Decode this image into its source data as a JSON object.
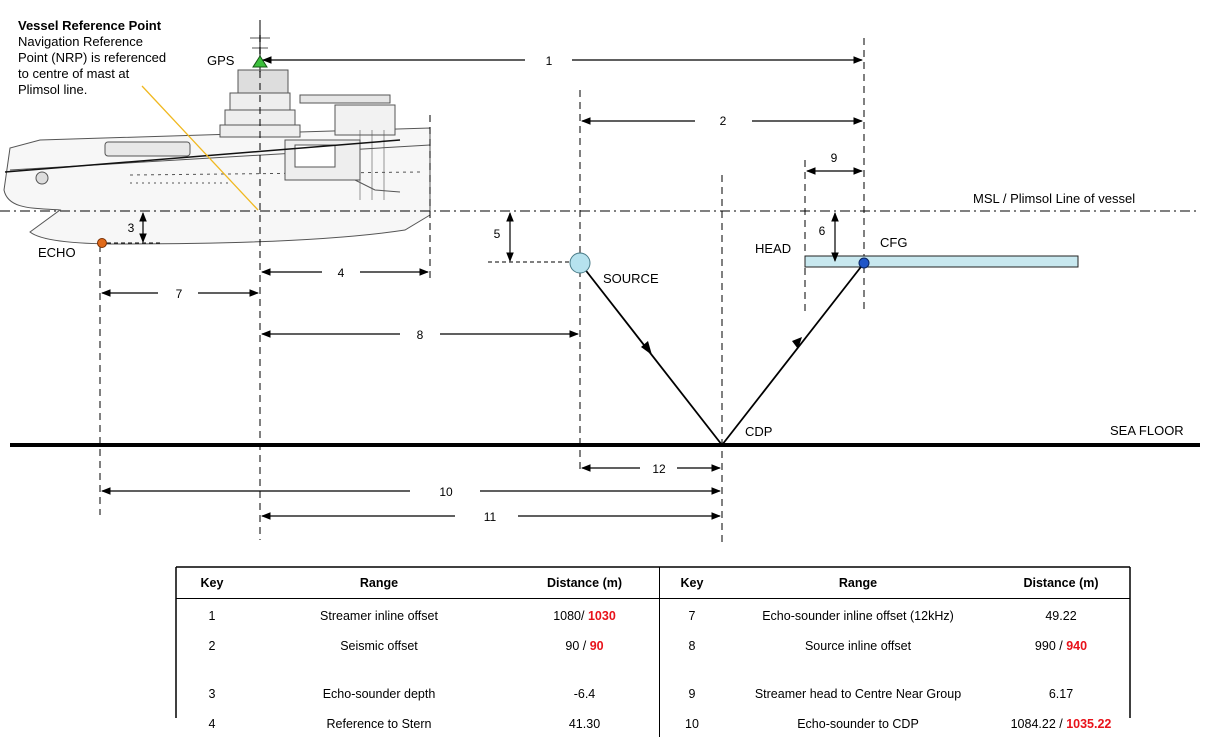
{
  "note": {
    "title": "Vessel Reference Point",
    "body": "Navigation Reference\nPoint (NRP) is referenced\nto centre of mast at\nPlimsol line."
  },
  "labels": {
    "gps": "GPS",
    "echo": "ECHO",
    "source": "SOURCE",
    "head": "HEAD",
    "cfg": "CFG",
    "cdp": "CDP",
    "msl": "MSL / Plimsol Line of vessel",
    "sea_floor": "SEA FLOOR"
  },
  "dimensions": [
    "1",
    "2",
    "3",
    "4",
    "5",
    "6",
    "7",
    "8",
    "9",
    "10",
    "11",
    "12"
  ],
  "table": {
    "headers": [
      "Key",
      "Range",
      "Distance (m)",
      "Key",
      "Range",
      "Distance (m)"
    ],
    "rows": [
      {
        "k1": "1",
        "r1": "Streamer inline offset",
        "d1a": "1080/ ",
        "d1b": "1030",
        "k2": "7",
        "r2": "Echo-sounder inline offset (12kHz)",
        "d2a": "49.22",
        "d2b": ""
      },
      {
        "k1": "2",
        "r1": "Seismic offset",
        "d1a": "90 / ",
        "d1b": "90",
        "k2": "8",
        "r2": "Source inline offset",
        "d2a": "990 / ",
        "d2b": "940"
      },
      {
        "k1": "3",
        "r1": "Echo-sounder depth",
        "d1a": "-6.4",
        "d1b": "",
        "k2": "9",
        "r2": "Streamer head to Centre Near Group",
        "d2a": "6.17",
        "d2b": ""
      },
      {
        "k1": "4",
        "r1": "Reference to Stern",
        "d1a": "41.30",
        "d1b": "",
        "k2": "10",
        "r2": "Echo-sounder to CDP",
        "d2a": "1084.22 / ",
        "d2b": "1035.22"
      }
    ]
  },
  "colors": {
    "gps": "#3cc03c",
    "echo": "#e06a1a",
    "source": "#b6e2ee",
    "cfg": "#1f55c8",
    "streamer": "#c8e8ef",
    "pointer": "#f0b820"
  }
}
